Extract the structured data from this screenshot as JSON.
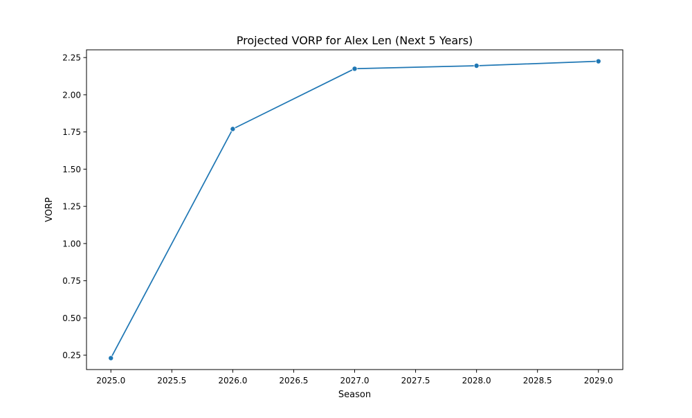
{
  "chart_data": {
    "type": "line",
    "title": "Projected VORP for Alex Len (Next 5 Years)",
    "xlabel": "Season",
    "ylabel": "VORP",
    "x": [
      2025.0,
      2026.0,
      2027.0,
      2028.0,
      2029.0
    ],
    "series": [
      {
        "values": [
          0.23,
          1.77,
          2.175,
          2.195,
          2.225
        ],
        "color": "#1f77b4"
      }
    ],
    "xlim": [
      2024.8,
      2029.2
    ],
    "ylim": [
      0.153,
      2.302
    ],
    "xticks": [
      2025.0,
      2025.5,
      2026.0,
      2026.5,
      2027.0,
      2027.5,
      2028.0,
      2028.5,
      2029.0
    ],
    "xtick_labels": [
      "2025.0",
      "2025.5",
      "2026.0",
      "2026.5",
      "2027.0",
      "2027.5",
      "2028.0",
      "2028.5",
      "2029.0"
    ],
    "yticks": [
      0.25,
      0.5,
      0.75,
      1.0,
      1.25,
      1.5,
      1.75,
      2.0,
      2.25
    ],
    "ytick_labels": [
      "0.25",
      "0.50",
      "0.75",
      "1.00",
      "1.25",
      "1.50",
      "1.75",
      "2.00",
      "2.25"
    ],
    "grid": false,
    "markers": "circle"
  }
}
